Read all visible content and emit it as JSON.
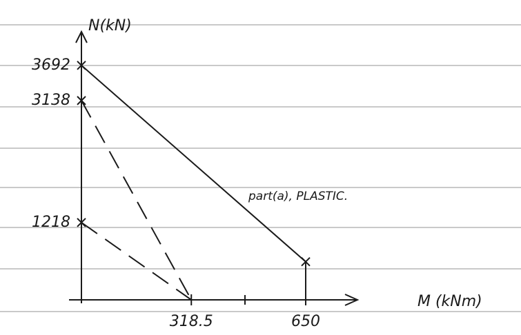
{
  "chart_data": {
    "type": "line",
    "x_label": "M (kNm)",
    "y_label": "N(kN)",
    "annotation": "part(a), PLASTIC.",
    "series": [
      {
        "x": [
          0,
          650,
          650
        ],
        "values": [
          3692,
          600,
          0
        ],
        "color": "#1a1a1a",
        "dashed": false
      },
      {
        "x": [
          0,
          318.5
        ],
        "values": [
          3138,
          0
        ],
        "color": "#1a1a1a",
        "dashed": true
      },
      {
        "x": [
          0,
          318.5
        ],
        "values": [
          1218,
          0
        ],
        "color": "#1a1a1a",
        "dashed": true
      }
    ],
    "xlim": [
      0,
      800
    ],
    "ylim": [
      0,
      4200
    ],
    "xticks": [
      318.5,
      650
    ],
    "yticks": [
      3692,
      3138,
      1218
    ]
  }
}
